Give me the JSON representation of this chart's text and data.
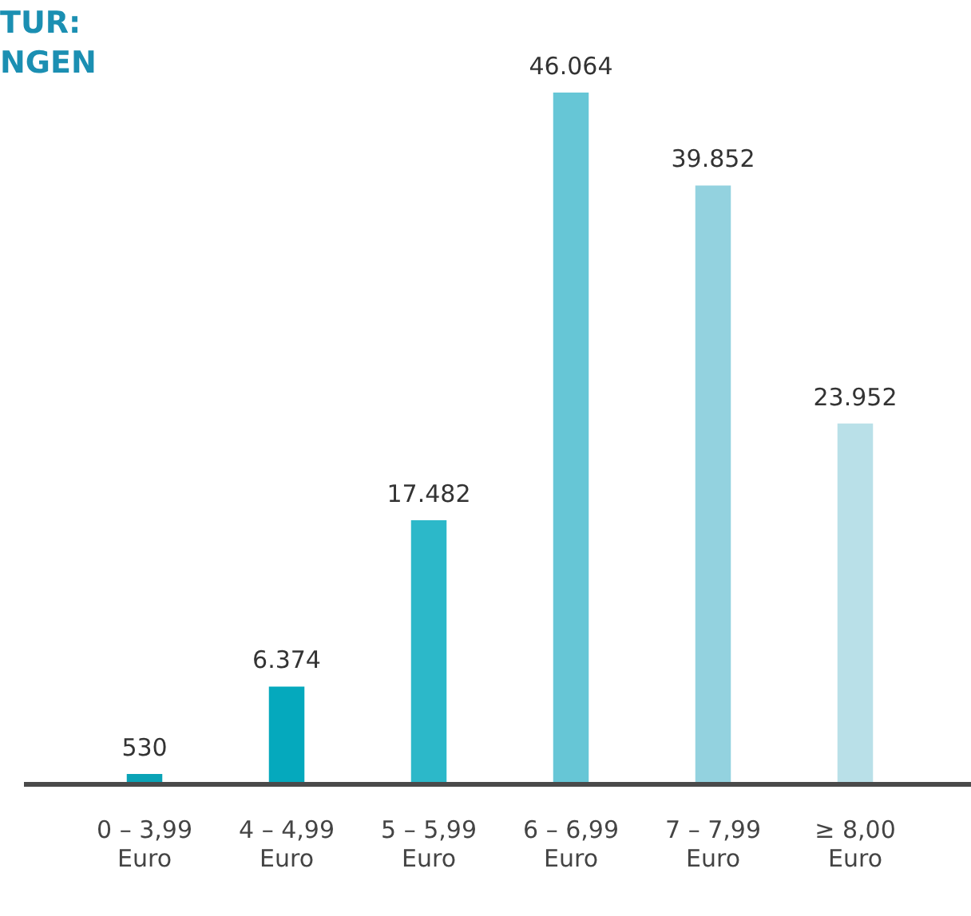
{
  "chart_data": {
    "type": "bar",
    "title": "TUR:\nNGEN",
    "categories": [
      "0 – 3,99\nEuro",
      "4 – 4,99\nEuro",
      "5 – 5,99\nEuro",
      "6 – 6,99\nEuro",
      "7 – 7,99\nEuro",
      "≥ 8,00\nEuro"
    ],
    "values": [
      530,
      6374,
      17482,
      46064,
      39852,
      23952
    ],
    "colors": [
      "#0aa3b6",
      "#05a9bd",
      "#2cb8c9",
      "#66c6d6",
      "#93d2df",
      "#b9e0e8"
    ],
    "value_labels": [
      "530",
      "6.374",
      "17.482",
      "46.064",
      "39.852",
      "23.952"
    ],
    "grid": false,
    "legend": false
  }
}
